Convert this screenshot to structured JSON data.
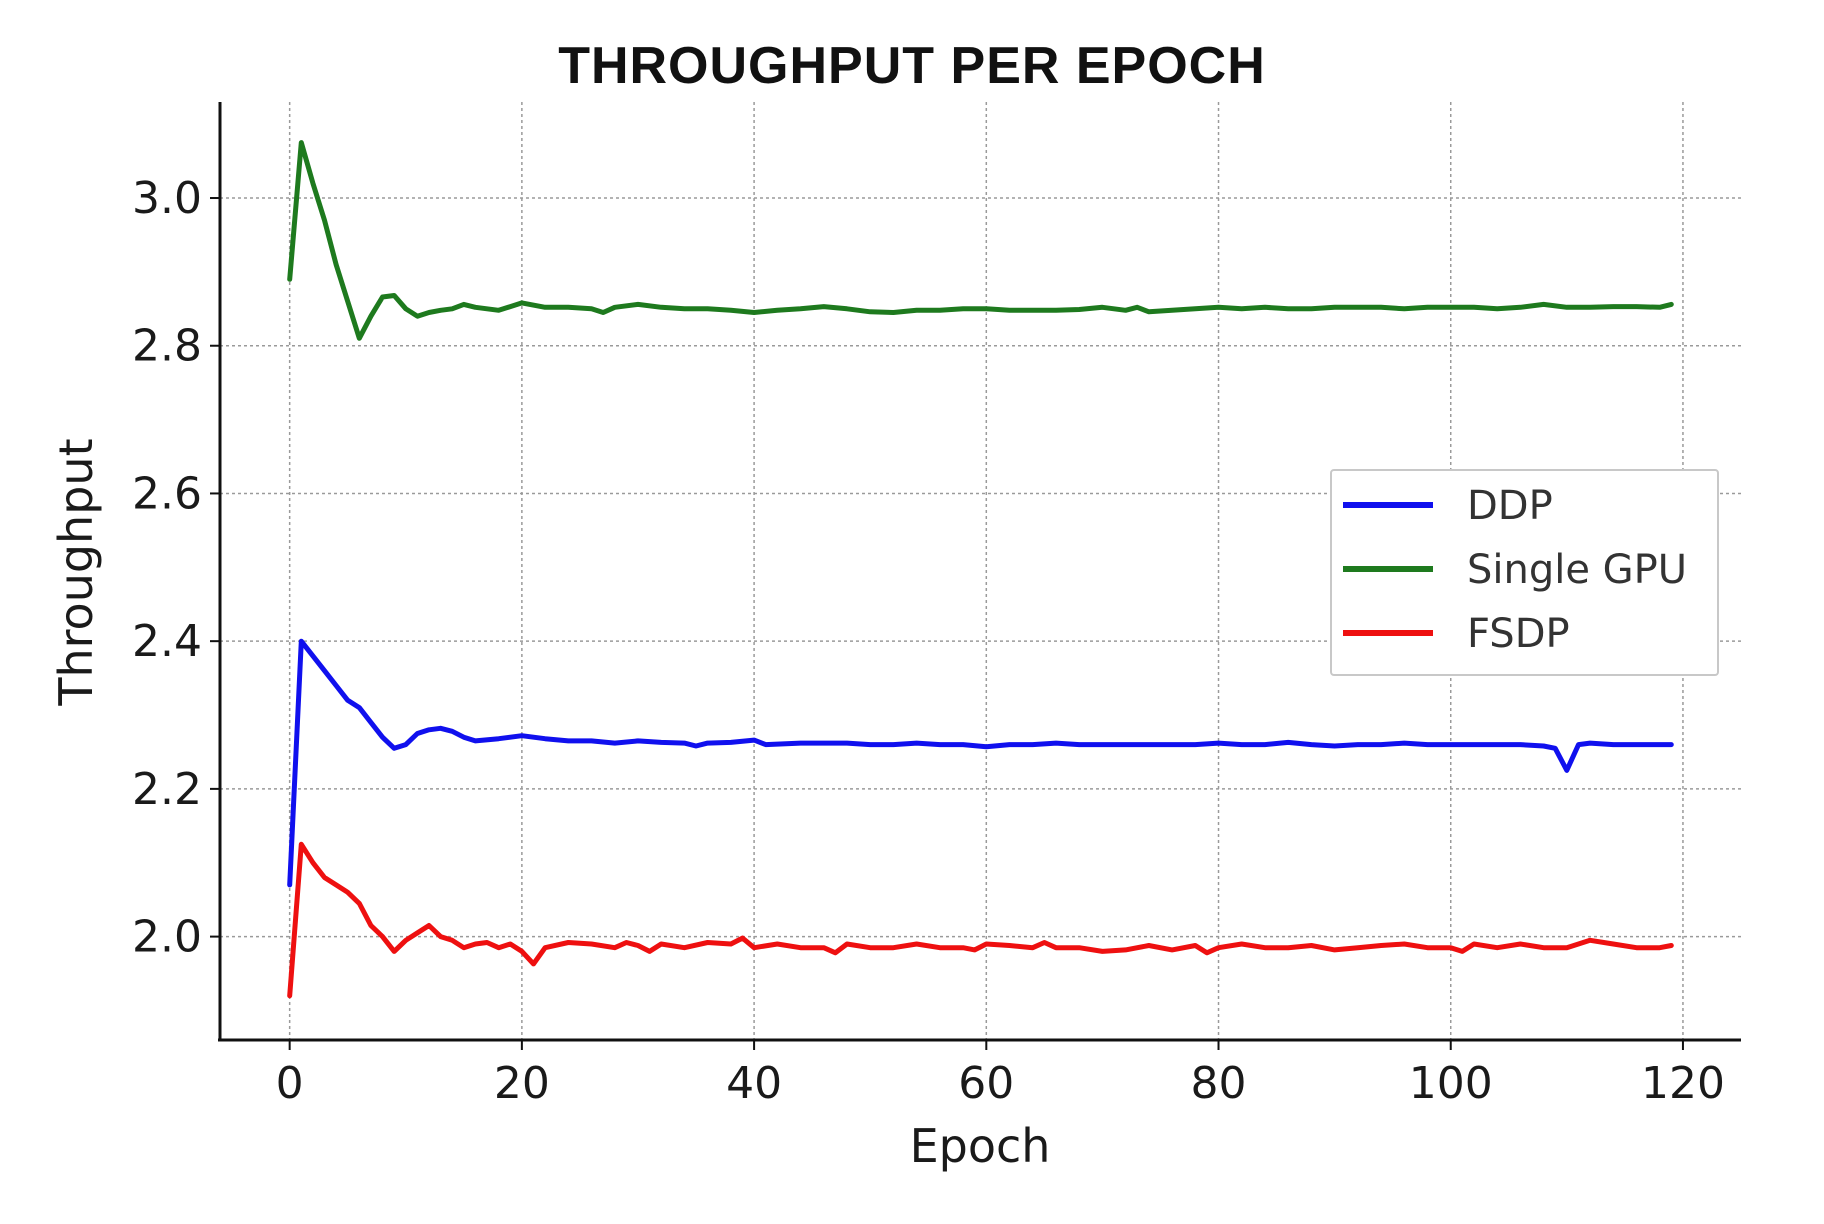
{
  "chart_data": {
    "type": "line",
    "title": "THROUGHPUT PER  EPOCH",
    "xlabel": "Epoch",
    "ylabel": "Throughput",
    "xlim": [
      -6,
      125
    ],
    "ylim": [
      1.86,
      3.13
    ],
    "xticks": [
      0,
      20,
      40,
      60,
      80,
      100,
      120
    ],
    "yticks": [
      2.0,
      2.2,
      2.4,
      2.6,
      2.8,
      3.0
    ],
    "ytick_labels": [
      "2.0",
      "2.2",
      "2.4",
      "2.6",
      "2.8",
      "3.0"
    ],
    "grid": true,
    "legend_position": "center-right",
    "series": [
      {
        "name": "DDP",
        "color": "#1010ee",
        "x": [
          0,
          1,
          2,
          3,
          4,
          5,
          6,
          7,
          8,
          9,
          10,
          11,
          12,
          13,
          14,
          15,
          16,
          18,
          20,
          22,
          24,
          26,
          28,
          30,
          32,
          34,
          35,
          36,
          38,
          40,
          41,
          44,
          46,
          48,
          50,
          52,
          54,
          56,
          58,
          60,
          62,
          64,
          66,
          68,
          70,
          72,
          74,
          76,
          78,
          80,
          82,
          84,
          86,
          88,
          90,
          92,
          94,
          96,
          98,
          100,
          102,
          104,
          106,
          108,
          109,
          110,
          111,
          112,
          114,
          116,
          118,
          119
        ],
        "y": [
          2.07,
          2.4,
          2.38,
          2.36,
          2.34,
          2.32,
          2.31,
          2.29,
          2.27,
          2.255,
          2.26,
          2.275,
          2.28,
          2.282,
          2.278,
          2.27,
          2.265,
          2.268,
          2.272,
          2.268,
          2.265,
          2.265,
          2.262,
          2.265,
          2.263,
          2.262,
          2.258,
          2.262,
          2.263,
          2.266,
          2.26,
          2.262,
          2.262,
          2.262,
          2.26,
          2.26,
          2.262,
          2.26,
          2.26,
          2.257,
          2.26,
          2.26,
          2.262,
          2.26,
          2.26,
          2.26,
          2.26,
          2.26,
          2.26,
          2.262,
          2.26,
          2.26,
          2.263,
          2.26,
          2.258,
          2.26,
          2.26,
          2.262,
          2.26,
          2.26,
          2.26,
          2.26,
          2.26,
          2.258,
          2.255,
          2.225,
          2.26,
          2.262,
          2.26,
          2.26,
          2.26,
          2.26
        ]
      },
      {
        "name": "Single GPU",
        "color": "#1e7a1e",
        "x": [
          0,
          1,
          2,
          3,
          4,
          5,
          6,
          7,
          8,
          9,
          10,
          11,
          12,
          13,
          14,
          15,
          16,
          18,
          20,
          22,
          24,
          26,
          27,
          28,
          30,
          32,
          34,
          36,
          38,
          40,
          42,
          44,
          46,
          48,
          50,
          52,
          54,
          56,
          58,
          60,
          62,
          64,
          66,
          68,
          70,
          72,
          73,
          74,
          76,
          78,
          80,
          82,
          84,
          86,
          88,
          90,
          92,
          94,
          96,
          98,
          100,
          102,
          104,
          106,
          108,
          110,
          112,
          114,
          116,
          118,
          119
        ],
        "y": [
          2.89,
          3.075,
          3.02,
          2.97,
          2.91,
          2.86,
          2.81,
          2.84,
          2.866,
          2.868,
          2.85,
          2.84,
          2.845,
          2.848,
          2.85,
          2.856,
          2.852,
          2.848,
          2.858,
          2.852,
          2.852,
          2.85,
          2.845,
          2.852,
          2.856,
          2.852,
          2.85,
          2.85,
          2.848,
          2.845,
          2.848,
          2.85,
          2.853,
          2.85,
          2.846,
          2.845,
          2.848,
          2.848,
          2.85,
          2.85,
          2.848,
          2.848,
          2.848,
          2.849,
          2.852,
          2.848,
          2.852,
          2.846,
          2.848,
          2.85,
          2.852,
          2.85,
          2.852,
          2.85,
          2.85,
          2.852,
          2.852,
          2.852,
          2.85,
          2.852,
          2.852,
          2.852,
          2.85,
          2.852,
          2.856,
          2.852,
          2.852,
          2.853,
          2.853,
          2.852,
          2.856
        ]
      },
      {
        "name": "FSDP",
        "color": "#ee1010",
        "x": [
          0,
          1,
          2,
          3,
          4,
          5,
          6,
          7,
          8,
          9,
          10,
          11,
          12,
          13,
          14,
          15,
          16,
          17,
          18,
          19,
          20,
          21,
          22,
          24,
          26,
          28,
          29,
          30,
          31,
          32,
          34,
          36,
          38,
          39,
          40,
          42,
          44,
          46,
          47,
          48,
          50,
          52,
          54,
          56,
          58,
          59,
          60,
          62,
          64,
          65,
          66,
          68,
          70,
          72,
          74,
          76,
          78,
          79,
          80,
          82,
          84,
          86,
          88,
          90,
          92,
          94,
          96,
          98,
          100,
          101,
          102,
          104,
          106,
          108,
          110,
          112,
          114,
          116,
          118,
          119
        ],
        "y": [
          1.92,
          2.125,
          2.1,
          2.08,
          2.07,
          2.06,
          2.045,
          2.015,
          2.0,
          1.98,
          1.995,
          2.005,
          2.015,
          2.0,
          1.995,
          1.985,
          1.99,
          1.992,
          1.985,
          1.99,
          1.98,
          1.963,
          1.985,
          1.992,
          1.99,
          1.985,
          1.992,
          1.988,
          1.98,
          1.99,
          1.985,
          1.992,
          1.99,
          1.998,
          1.985,
          1.99,
          1.985,
          1.985,
          1.978,
          1.99,
          1.985,
          1.985,
          1.99,
          1.985,
          1.985,
          1.982,
          1.99,
          1.988,
          1.985,
          1.992,
          1.985,
          1.985,
          1.98,
          1.982,
          1.988,
          1.982,
          1.988,
          1.978,
          1.985,
          1.99,
          1.985,
          1.985,
          1.988,
          1.982,
          1.985,
          1.988,
          1.99,
          1.985,
          1.985,
          1.98,
          1.99,
          1.985,
          1.99,
          1.985,
          1.985,
          1.995,
          1.99,
          1.985,
          1.985,
          1.988
        ]
      }
    ]
  }
}
